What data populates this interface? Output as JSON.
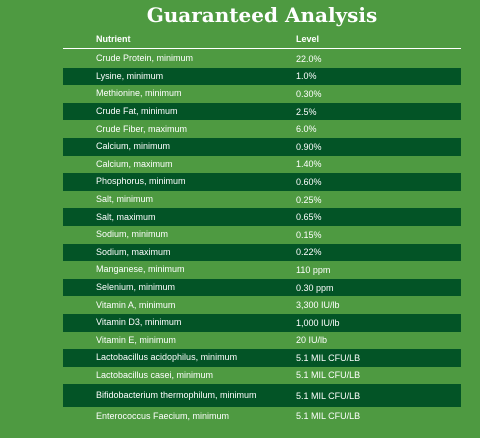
{
  "title": "Guaranteed Analysis",
  "table": {
    "headers": {
      "nutrient": "Nutrient",
      "level": "Level"
    },
    "rows": [
      {
        "nutrient": "Crude Protein, minimum",
        "level": "22.0%"
      },
      {
        "nutrient": "Lysine, minimum",
        "level": "1.0%"
      },
      {
        "nutrient": "Methionine, minimum",
        "level": "0.30%"
      },
      {
        "nutrient": "Crude Fat, minimum",
        "level": "2.5%"
      },
      {
        "nutrient": "Crude Fiber, maximum",
        "level": "6.0%"
      },
      {
        "nutrient": "Calcium, minimum",
        "level": "0.90%"
      },
      {
        "nutrient": "Calcium, maximum",
        "level": "1.40%"
      },
      {
        "nutrient": "Phosphorus, minimum",
        "level": "0.60%"
      },
      {
        "nutrient": "Salt, minimum",
        "level": "0.25%"
      },
      {
        "nutrient": "Salt, maximum",
        "level": "0.65%"
      },
      {
        "nutrient": "Sodium, minimum",
        "level": "0.15%"
      },
      {
        "nutrient": "Sodium, maximum",
        "level": "0.22%"
      },
      {
        "nutrient": "Manganese, minimum",
        "level": "110 ppm"
      },
      {
        "nutrient": "Selenium, minimum",
        "level": "0.30 ppm"
      },
      {
        "nutrient": "Vitamin A, minimum",
        "level": "3,300 IU/lb"
      },
      {
        "nutrient": "Vitamin D3, minimum",
        "level": "1,000 IU/lb"
      },
      {
        "nutrient": "Vitamin E, minimum",
        "level": "20 IU/lb"
      },
      {
        "nutrient": "Lactobacillus acidophilus, minimum",
        "level": "5.1 MIL CFU/LB"
      },
      {
        "nutrient": "Lactobacillus casei, minimum",
        "level": "5.1 MIL CFU/LB"
      },
      {
        "nutrient": "Bifidobacterium thermophilum, minimum",
        "level": "5.1 MIL CFU/LB"
      },
      {
        "nutrient": "Enterococcus Faecium, minimum",
        "level": "5.1 MIL CFU/LB"
      }
    ]
  },
  "colors": {
    "background": "#4e9a41",
    "row_dark": "#035426",
    "text": "#ffffff"
  }
}
